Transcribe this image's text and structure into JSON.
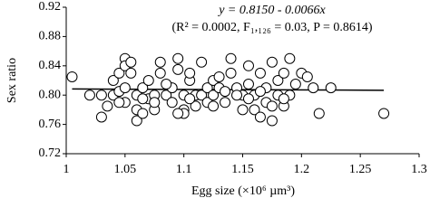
{
  "chart_data": {
    "type": "scatter",
    "annotations": [
      "y = 0.8150 - 0.0066x",
      "(R² = 0.0002, F₁,₁₂₆ = 0.03, P = 0.8614)"
    ],
    "x_label": "Egg size (×10⁶ µm³)",
    "y_label": "Sex ratio",
    "xlim": [
      1,
      1.3
    ],
    "xticks": [
      1,
      1.05,
      1.1,
      1.15,
      1.2,
      1.25,
      1.3
    ],
    "ylim": [
      0.72,
      0.92
    ],
    "yticks": [
      0.72,
      0.76,
      {
        "value": 0.8,
        "label": "0.80"
      },
      0.84,
      0.88,
      0.92
    ],
    "fit": {
      "intercept": 0.815,
      "slope": -0.0066
    },
    "x": [
      1.005,
      1.02,
      1.03,
      1.03,
      1.035,
      1.04,
      1.04,
      1.045,
      1.045,
      1.05,
      1.05,
      1.05,
      1.05,
      1.055,
      1.055,
      1.06,
      1.06,
      1.06,
      1.065,
      1.065,
      1.07,
      1.07,
      1.075,
      1.075,
      1.08,
      1.08,
      1.085,
      1.09,
      1.09,
      1.095,
      1.095,
      1.1,
      1.1,
      1.1,
      1.105,
      1.105,
      1.11,
      1.11,
      1.115,
      1.115,
      1.12,
      1.12,
      1.125,
      1.125,
      1.13,
      1.13,
      1.135,
      1.135,
      1.14,
      1.14,
      1.145,
      1.15,
      1.15,
      1.155,
      1.155,
      1.16,
      1.16,
      1.165,
      1.165,
      1.17,
      1.17,
      1.175,
      1.175,
      1.18,
      1.18,
      1.185,
      1.185,
      1.19,
      1.19,
      1.195,
      1.2,
      1.205,
      1.21,
      1.215,
      1.225,
      1.27,
      1.045,
      1.065,
      1.085,
      1.105,
      1.125,
      1.145,
      1.165,
      1.185,
      1.075,
      1.095,
      1.155,
      1.175
    ],
    "values": [
      0.825,
      0.8,
      0.8,
      0.77,
      0.785,
      0.8,
      0.82,
      0.83,
      0.805,
      0.85,
      0.84,
      0.81,
      0.79,
      0.845,
      0.83,
      0.8,
      0.78,
      0.765,
      0.81,
      0.775,
      0.82,
      0.795,
      0.8,
      0.78,
      0.845,
      0.83,
      0.8,
      0.79,
      0.81,
      0.85,
      0.835,
      0.8,
      0.78,
      0.775,
      0.82,
      0.83,
      0.8,
      0.785,
      0.845,
      0.8,
      0.81,
      0.79,
      0.82,
      0.8,
      0.825,
      0.81,
      0.805,
      0.79,
      0.85,
      0.83,
      0.81,
      0.78,
      0.8,
      0.84,
      0.815,
      0.78,
      0.8,
      0.83,
      0.77,
      0.79,
      0.81,
      0.845,
      0.765,
      0.82,
      0.8,
      0.83,
      0.785,
      0.85,
      0.8,
      0.815,
      0.83,
      0.825,
      0.81,
      0.775,
      0.81,
      0.775,
      0.79,
      0.795,
      0.815,
      0.795,
      0.785,
      0.8,
      0.805,
      0.795,
      0.79,
      0.775,
      0.795,
      0.785
    ],
    "marker_fill": "#ffffff",
    "marker_edge": "#000000"
  }
}
